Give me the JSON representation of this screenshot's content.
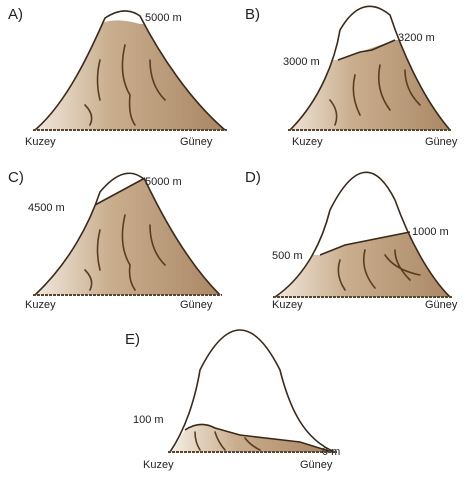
{
  "options": [
    {
      "label": "A)",
      "altitudes": [
        "5000 m"
      ],
      "north": "Kuzey",
      "south": "Güney"
    },
    {
      "label": "B)",
      "altitudes": [
        "3000 m",
        "3200 m"
      ],
      "north": "Kuzey",
      "south": "Güney"
    },
    {
      "label": "C)",
      "altitudes": [
        "4500 m",
        "5000 m"
      ],
      "north": "Kuzey",
      "south": "Güney"
    },
    {
      "label": "D)",
      "altitudes": [
        "500 m",
        "1000 m"
      ],
      "north": "Kuzey",
      "south": "Güney"
    },
    {
      "label": "E)",
      "altitudes": [
        "100 m",
        "0 m"
      ],
      "north": "Kuzey",
      "south": "Güney"
    }
  ]
}
